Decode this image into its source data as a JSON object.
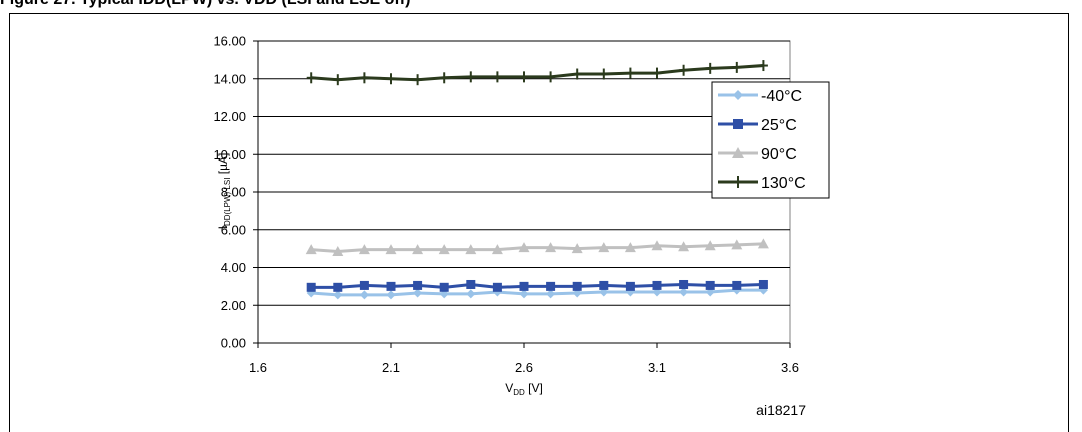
{
  "figure_caption": "Figure 27. Typical IDD(LPW) vs. VDD (LSI and LSE off)",
  "figure_id": "ai18217",
  "chart_data": {
    "type": "line",
    "xlabel": {
      "main": "V",
      "sub": "DD",
      "unit": " [V]"
    },
    "ylabel": {
      "main": "I",
      "sub": "DD(LPW) LSI",
      "unit": " [µA]"
    },
    "xlim": [
      1.6,
      3.6
    ],
    "ylim": [
      0,
      16
    ],
    "x_ticks": [
      "1.6",
      "2.1",
      "2.6",
      "3.1",
      "3.6"
    ],
    "y_ticks": [
      "0.00",
      "2.00",
      "4.00",
      "6.00",
      "8.00",
      "10.00",
      "12.00",
      "14.00",
      "16.00"
    ],
    "grid": "horizontal",
    "legend_position": "right",
    "x": [
      1.8,
      1.9,
      2.0,
      2.1,
      2.2,
      2.3,
      2.4,
      2.5,
      2.6,
      2.7,
      2.8,
      2.9,
      3.0,
      3.1,
      3.2,
      3.3,
      3.4,
      3.5
    ],
    "series": [
      {
        "name": "-40°C",
        "color": "#99c2e8",
        "marker": "diamond",
        "values": [
          2.65,
          2.55,
          2.55,
          2.55,
          2.65,
          2.6,
          2.6,
          2.7,
          2.6,
          2.6,
          2.65,
          2.7,
          2.7,
          2.7,
          2.7,
          2.7,
          2.8,
          2.8
        ]
      },
      {
        "name": "25°C",
        "color": "#2e4fa6",
        "marker": "square",
        "values": [
          2.95,
          2.95,
          3.05,
          3.0,
          3.05,
          2.95,
          3.1,
          2.95,
          3.0,
          3.0,
          3.0,
          3.05,
          3.0,
          3.05,
          3.1,
          3.05,
          3.05,
          3.1
        ]
      },
      {
        "name": "90°C",
        "color": "#c0c0c0",
        "marker": "triangle",
        "values": [
          4.95,
          4.85,
          4.95,
          4.95,
          4.95,
          4.95,
          4.95,
          4.95,
          5.05,
          5.05,
          5.0,
          5.05,
          5.05,
          5.15,
          5.1,
          5.15,
          5.2,
          5.25
        ]
      },
      {
        "name": "130°C",
        "color": "#2b3a1d",
        "marker": "plus",
        "values": [
          14.05,
          13.95,
          14.05,
          14.0,
          13.95,
          14.05,
          14.1,
          14.1,
          14.1,
          14.1,
          14.25,
          14.25,
          14.3,
          14.3,
          14.45,
          14.55,
          14.6,
          14.7
        ]
      }
    ]
  }
}
